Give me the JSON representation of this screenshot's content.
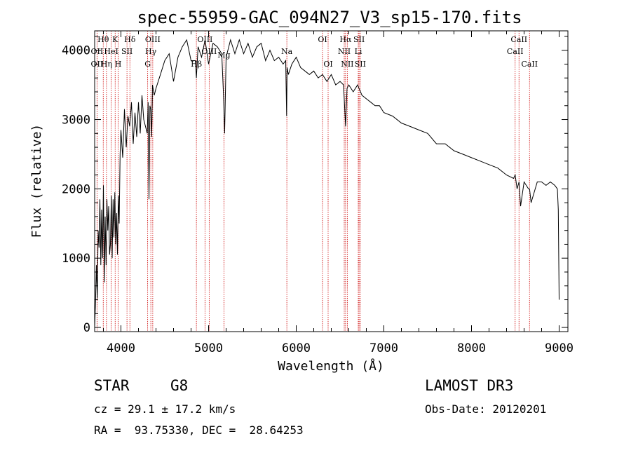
{
  "chart_data": {
    "type": "line",
    "title": "spec-55959-GAC_094N27_V3_sp15-170.fits",
    "xlabel": "Wavelength (Å)",
    "ylabel": "Flux (relative)",
    "xlim": [
      3700,
      9100
    ],
    "ylim": [
      -60,
      4280
    ],
    "xticks": [
      4000,
      5000,
      6000,
      7000,
      8000,
      9000
    ],
    "yticks": [
      0,
      1000,
      2000,
      3000,
      4000
    ],
    "series": [
      {
        "name": "flux",
        "x": [
          3700,
          3710,
          3720,
          3730,
          3740,
          3750,
          3760,
          3770,
          3780,
          3790,
          3800,
          3810,
          3820,
          3830,
          3840,
          3850,
          3860,
          3870,
          3880,
          3890,
          3900,
          3910,
          3920,
          3930,
          3940,
          3950,
          3960,
          3970,
          3980,
          3990,
          4000,
          4020,
          4040,
          4060,
          4080,
          4100,
          4120,
          4140,
          4160,
          4180,
          4200,
          4220,
          4240,
          4260,
          4280,
          4300,
          4310,
          4320,
          4330,
          4340,
          4350,
          4360,
          4380,
          4400,
          4450,
          4500,
          4550,
          4600,
          4650,
          4700,
          4750,
          4800,
          4850,
          4861,
          4880,
          4920,
          4960,
          5000,
          5050,
          5100,
          5150,
          5170,
          5183,
          5200,
          5250,
          5300,
          5350,
          5400,
          5450,
          5500,
          5550,
          5600,
          5650,
          5700,
          5750,
          5800,
          5850,
          5880,
          5890,
          5896,
          5910,
          5950,
          6000,
          6050,
          6100,
          6150,
          6200,
          6250,
          6300,
          6350,
          6400,
          6450,
          6500,
          6540,
          6563,
          6580,
          6600,
          6650,
          6700,
          6750,
          6800,
          6850,
          6900,
          6950,
          7000,
          7100,
          7200,
          7300,
          7400,
          7500,
          7600,
          7700,
          7800,
          7900,
          8000,
          8100,
          8200,
          8300,
          8400,
          8480,
          8498,
          8520,
          8542,
          8560,
          8600,
          8650,
          8662,
          8680,
          8750,
          8800,
          8850,
          8900,
          8950,
          8980,
          8990,
          9000
        ],
        "values": [
          0,
          380,
          900,
          420,
          1400,
          1150,
          1850,
          900,
          1700,
          1000,
          2050,
          650,
          1600,
          900,
          1850,
          1400,
          1750,
          1050,
          1200,
          1900,
          1000,
          1850,
          1300,
          1950,
          1200,
          1650,
          1050,
          1900,
          1500,
          2500,
          2850,
          2450,
          3150,
          2600,
          3050,
          2900,
          3250,
          2650,
          3100,
          2750,
          3250,
          2800,
          3350,
          3000,
          2900,
          2800,
          3250,
          1850,
          3200,
          3150,
          2750,
          3500,
          3350,
          3450,
          3650,
          3850,
          3950,
          3550,
          3900,
          4050,
          4150,
          3850,
          3850,
          3600,
          4050,
          3900,
          4150,
          3800,
          4100,
          4050,
          3950,
          3350,
          2800,
          3900,
          4150,
          3950,
          4150,
          3950,
          4100,
          3900,
          4050,
          4100,
          3850,
          4000,
          3850,
          3900,
          3800,
          3850,
          3050,
          3750,
          3650,
          3800,
          3900,
          3750,
          3700,
          3650,
          3700,
          3600,
          3650,
          3550,
          3650,
          3500,
          3550,
          3500,
          2900,
          3450,
          3500,
          3400,
          3500,
          3350,
          3300,
          3250,
          3200,
          3200,
          3100,
          3050,
          2950,
          2900,
          2850,
          2800,
          2650,
          2650,
          2550,
          2500,
          2450,
          2400,
          2350,
          2300,
          2200,
          2150,
          2200,
          2000,
          2100,
          1750,
          2100,
          2000,
          2000,
          1800,
          2100,
          2100,
          2050,
          2100,
          2050,
          2000,
          1700,
          400
        ]
      }
    ],
    "spectral_lines": [
      {
        "label": "Hθ",
        "x": 3798,
        "row": 1
      },
      {
        "label": "OII",
        "x": 3727,
        "row": 2
      },
      {
        "label": "OII",
        "x": 3727,
        "row": 3
      },
      {
        "label": "Hη",
        "x": 3835,
        "row": 3
      },
      {
        "label": "HeI",
        "x": 3889,
        "row": 2
      },
      {
        "label": "K",
        "x": 3934,
        "row": 1
      },
      {
        "label": "H",
        "x": 3968,
        "row": 3
      },
      {
        "label": "SII",
        "x": 4069,
        "row": 2
      },
      {
        "label": "Hδ",
        "x": 4102,
        "row": 1
      },
      {
        "label": "OIII",
        "x": 4363,
        "row": 1
      },
      {
        "label": "Hγ",
        "x": 4341,
        "row": 2
      },
      {
        "label": "G",
        "x": 4305,
        "row": 3
      },
      {
        "label": "OIII",
        "x": 4959,
        "row": 1
      },
      {
        "label": "OIII",
        "x": 5007,
        "row": 2
      },
      {
        "label": "Hβ",
        "x": 4861,
        "row": 3
      },
      {
        "label": "Mg",
        "x": 5175,
        "row": 0
      },
      {
        "label": "Na",
        "x": 5893,
        "row": 2
      },
      {
        "label": "OI",
        "x": 6300,
        "row": 1
      },
      {
        "label": "OI",
        "x": 6364,
        "row": 3
      },
      {
        "label": "Hα",
        "x": 6563,
        "row": 1
      },
      {
        "label": "NII",
        "x": 6548,
        "row": 2
      },
      {
        "label": "NII",
        "x": 6583,
        "row": 3
      },
      {
        "label": "SII",
        "x": 6717,
        "row": 1
      },
      {
        "label": "Li",
        "x": 6708,
        "row": 2
      },
      {
        "label": "SII",
        "x": 6731,
        "row": 3
      },
      {
        "label": "CaII",
        "x": 8542,
        "row": 1
      },
      {
        "label": "CaII",
        "x": 8498,
        "row": 2
      },
      {
        "label": "CaII",
        "x": 8662,
        "row": 3
      }
    ]
  },
  "info": {
    "object_class": "STAR",
    "subclass": "G8",
    "survey": "LAMOST DR3",
    "redshift": "cz = 29.1 ± 17.2 km/s",
    "obs_date": "Obs-Date: 20120201",
    "coords": "RA =  93.75330, DEC =  28.64253"
  },
  "colors": {
    "axis": "#000000",
    "spectrum": "#000000",
    "line_marker": "#cc0000"
  }
}
